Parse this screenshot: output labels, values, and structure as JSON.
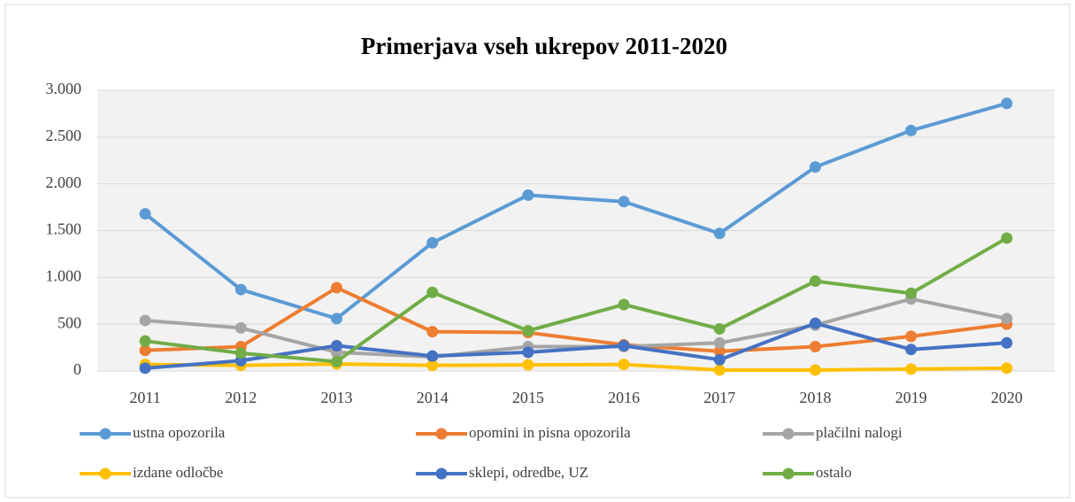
{
  "chart_data": {
    "type": "line",
    "title": "Primerjava vseh ukrepov 2011-2020",
    "categories": [
      "2011",
      "2012",
      "2013",
      "2014",
      "2015",
      "2016",
      "2017",
      "2018",
      "2019",
      "2020"
    ],
    "series": [
      {
        "name": "ustna opozorila",
        "color": "#5b9bd5",
        "values": [
          1680,
          870,
          560,
          1370,
          1880,
          1810,
          1470,
          2180,
          2570,
          2860
        ]
      },
      {
        "name": "opomini in pisna opozorila",
        "color": "#ed7d31",
        "values": [
          220,
          260,
          890,
          420,
          410,
          280,
          210,
          260,
          370,
          500
        ]
      },
      {
        "name": "plačilni nalogi",
        "color": "#a5a5a5",
        "values": [
          540,
          460,
          200,
          150,
          260,
          260,
          300,
          490,
          770,
          560
        ]
      },
      {
        "name": "izdane odločbe",
        "color": "#ffc000",
        "values": [
          70,
          60,
          75,
          60,
          65,
          70,
          10,
          10,
          20,
          30
        ]
      },
      {
        "name": "sklepi, odredbe, UZ",
        "color": "#4472c4",
        "values": [
          30,
          110,
          270,
          160,
          200,
          270,
          120,
          510,
          230,
          300
        ]
      },
      {
        "name": "ostalo",
        "color": "#70ad47",
        "values": [
          320,
          190,
          100,
          840,
          430,
          710,
          450,
          960,
          830,
          1420
        ]
      }
    ],
    "ylim": [
      0,
      3000
    ],
    "yticks": [
      0,
      500,
      {
        "value": 1000,
        "label": "1.000"
      },
      {
        "value": 1500,
        "label": "1.500"
      },
      {
        "value": 2000,
        "label": "2.000"
      },
      {
        "value": 2500,
        "label": "2.500"
      },
      {
        "value": 3000,
        "label": "3.000"
      }
    ],
    "grid": true,
    "legend": "bottom"
  }
}
